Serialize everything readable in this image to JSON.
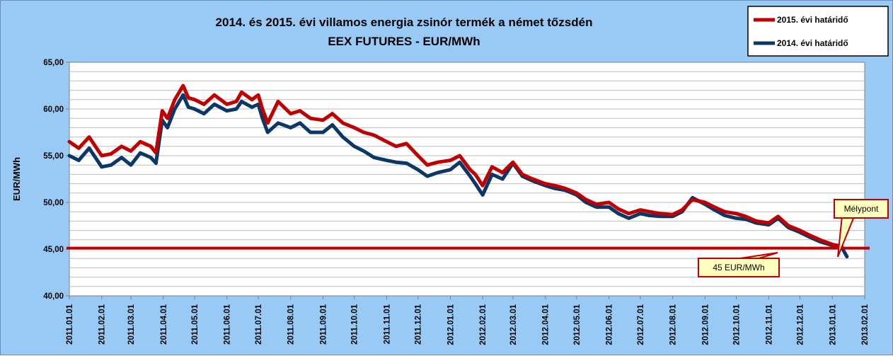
{
  "chart_data": {
    "type": "line",
    "title": "2014. és 2015. évi villamos energia zsinór termék a német tőzsdén",
    "subtitle": "EEX FUTURES - EUR/MWh",
    "ylabel": "EUR/MWh",
    "xlabel": "",
    "ylim": [
      40,
      65
    ],
    "yticks": [
      "40,00",
      "45,00",
      "50,00",
      "55,00",
      "60,00",
      "65,00"
    ],
    "xticks": [
      "2011.01.01",
      "2011.02.01",
      "2011.03.01",
      "2011.04.01",
      "2011.05.01",
      "2011.06.01",
      "2011.07.01",
      "2011.08.01",
      "2011.09.01",
      "2011.10.01",
      "2011.11.01",
      "2011.12.01",
      "2012.01.01",
      "2012.02.01",
      "2012.03.01",
      "2012.04.01",
      "2012.05.01",
      "2012.06.01",
      "2012.07.01",
      "2012.08.01",
      "2012.09.01",
      "2012.10.01",
      "2012.11.01",
      "2012.12.01",
      "2013.01.01",
      "2013.02.01"
    ],
    "grid": true,
    "legend_position": "top-right",
    "series": [
      {
        "name": "2015. évi határidő",
        "color": "#c00000",
        "points": [
          [
            "2011.01.01",
            56.5
          ],
          [
            "2011.01.10",
            55.8
          ],
          [
            "2011.01.20",
            57.0
          ],
          [
            "2011.02.01",
            55.0
          ],
          [
            "2011.02.10",
            55.2
          ],
          [
            "2011.02.20",
            56.0
          ],
          [
            "2011.03.01",
            55.5
          ],
          [
            "2011.03.10",
            56.5
          ],
          [
            "2011.03.20",
            56.0
          ],
          [
            "2011.03.25",
            55.3
          ],
          [
            "2011.03.31",
            59.8
          ],
          [
            "2011.04.05",
            59.0
          ],
          [
            "2011.04.12",
            61.0
          ],
          [
            "2011.04.20",
            62.5
          ],
          [
            "2011.04.25",
            61.2
          ],
          [
            "2011.05.01",
            61.0
          ],
          [
            "2011.05.10",
            60.5
          ],
          [
            "2011.05.20",
            61.5
          ],
          [
            "2011.06.01",
            60.5
          ],
          [
            "2011.06.10",
            60.8
          ],
          [
            "2011.06.15",
            61.8
          ],
          [
            "2011.06.25",
            61.0
          ],
          [
            "2011.07.01",
            61.5
          ],
          [
            "2011.07.05",
            60.0
          ],
          [
            "2011.07.10",
            58.5
          ],
          [
            "2011.07.20",
            60.8
          ],
          [
            "2011.08.01",
            59.5
          ],
          [
            "2011.08.10",
            59.8
          ],
          [
            "2011.08.20",
            59.0
          ],
          [
            "2011.09.01",
            58.8
          ],
          [
            "2011.09.10",
            59.5
          ],
          [
            "2011.09.20",
            58.5
          ],
          [
            "2011.10.01",
            58.0
          ],
          [
            "2011.10.10",
            57.5
          ],
          [
            "2011.10.20",
            57.2
          ],
          [
            "2011.11.01",
            56.5
          ],
          [
            "2011.11.10",
            56.0
          ],
          [
            "2011.11.20",
            56.3
          ],
          [
            "2011.12.01",
            55.0
          ],
          [
            "2011.12.10",
            54.0
          ],
          [
            "2011.12.20",
            54.3
          ],
          [
            "2012.01.01",
            54.5
          ],
          [
            "2012.01.10",
            55.0
          ],
          [
            "2012.01.20",
            53.5
          ],
          [
            "2012.01.25",
            53.0
          ],
          [
            "2012.02.01",
            51.8
          ],
          [
            "2012.02.10",
            53.8
          ],
          [
            "2012.02.20",
            53.2
          ],
          [
            "2012.03.01",
            54.3
          ],
          [
            "2012.03.10",
            53.0
          ],
          [
            "2012.03.20",
            52.5
          ],
          [
            "2012.04.01",
            52.0
          ],
          [
            "2012.04.10",
            51.8
          ],
          [
            "2012.04.20",
            51.5
          ],
          [
            "2012.05.01",
            51.0
          ],
          [
            "2012.05.10",
            50.3
          ],
          [
            "2012.05.20",
            49.8
          ],
          [
            "2012.06.01",
            50.0
          ],
          [
            "2012.06.10",
            49.3
          ],
          [
            "2012.06.20",
            48.8
          ],
          [
            "2012.07.01",
            49.2
          ],
          [
            "2012.07.10",
            49.0
          ],
          [
            "2012.07.20",
            48.8
          ],
          [
            "2012.08.01",
            48.7
          ],
          [
            "2012.08.10",
            49.2
          ],
          [
            "2012.08.20",
            50.3
          ],
          [
            "2012.09.01",
            50.0
          ],
          [
            "2012.09.10",
            49.5
          ],
          [
            "2012.09.20",
            49.0
          ],
          [
            "2012.10.01",
            48.8
          ],
          [
            "2012.10.10",
            48.5
          ],
          [
            "2012.10.20",
            48.0
          ],
          [
            "2012.11.01",
            47.8
          ],
          [
            "2012.11.10",
            48.5
          ],
          [
            "2012.11.20",
            47.5
          ],
          [
            "2012.12.01",
            47.0
          ],
          [
            "2012.12.10",
            46.5
          ],
          [
            "2012.12.20",
            46.0
          ],
          [
            "2013.01.01",
            45.5
          ],
          [
            "2013.01.10",
            45.3
          ]
        ]
      },
      {
        "name": "2014. évi határidő",
        "color": "#0a3768",
        "points": [
          [
            "2011.01.01",
            55.0
          ],
          [
            "2011.01.10",
            54.5
          ],
          [
            "2011.01.20",
            55.8
          ],
          [
            "2011.02.01",
            53.8
          ],
          [
            "2011.02.10",
            54.0
          ],
          [
            "2011.02.20",
            54.8
          ],
          [
            "2011.03.01",
            54.0
          ],
          [
            "2011.03.10",
            55.3
          ],
          [
            "2011.03.20",
            54.8
          ],
          [
            "2011.03.25",
            54.2
          ],
          [
            "2011.03.31",
            58.8
          ],
          [
            "2011.04.05",
            58.0
          ],
          [
            "2011.04.12",
            60.0
          ],
          [
            "2011.04.20",
            61.5
          ],
          [
            "2011.04.25",
            60.2
          ],
          [
            "2011.05.01",
            60.0
          ],
          [
            "2011.05.10",
            59.5
          ],
          [
            "2011.05.20",
            60.5
          ],
          [
            "2011.06.01",
            59.8
          ],
          [
            "2011.06.10",
            60.0
          ],
          [
            "2011.06.15",
            60.8
          ],
          [
            "2011.06.25",
            60.2
          ],
          [
            "2011.07.01",
            60.5
          ],
          [
            "2011.07.05",
            59.0
          ],
          [
            "2011.07.10",
            57.5
          ],
          [
            "2011.07.20",
            58.5
          ],
          [
            "2011.08.01",
            58.0
          ],
          [
            "2011.08.10",
            58.5
          ],
          [
            "2011.08.20",
            57.5
          ],
          [
            "2011.09.01",
            57.5
          ],
          [
            "2011.09.10",
            58.3
          ],
          [
            "2011.09.20",
            57.0
          ],
          [
            "2011.10.01",
            56.0
          ],
          [
            "2011.10.10",
            55.5
          ],
          [
            "2011.10.20",
            54.8
          ],
          [
            "2011.11.01",
            54.5
          ],
          [
            "2011.11.10",
            54.3
          ],
          [
            "2011.11.20",
            54.2
          ],
          [
            "2011.12.01",
            53.5
          ],
          [
            "2011.12.10",
            52.8
          ],
          [
            "2011.12.20",
            53.2
          ],
          [
            "2012.01.01",
            53.5
          ],
          [
            "2012.01.10",
            54.3
          ],
          [
            "2012.01.20",
            52.8
          ],
          [
            "2012.01.25",
            52.0
          ],
          [
            "2012.02.01",
            50.8
          ],
          [
            "2012.02.10",
            53.0
          ],
          [
            "2012.02.20",
            52.5
          ],
          [
            "2012.03.01",
            54.2
          ],
          [
            "2012.03.10",
            52.8
          ],
          [
            "2012.03.20",
            52.3
          ],
          [
            "2012.04.01",
            51.8
          ],
          [
            "2012.04.10",
            51.5
          ],
          [
            "2012.04.20",
            51.3
          ],
          [
            "2012.05.01",
            50.8
          ],
          [
            "2012.05.10",
            50.0
          ],
          [
            "2012.05.20",
            49.5
          ],
          [
            "2012.06.01",
            49.5
          ],
          [
            "2012.06.10",
            48.8
          ],
          [
            "2012.06.20",
            48.3
          ],
          [
            "2012.07.01",
            48.8
          ],
          [
            "2012.07.10",
            48.6
          ],
          [
            "2012.07.20",
            48.5
          ],
          [
            "2012.08.01",
            48.5
          ],
          [
            "2012.08.10",
            49.0
          ],
          [
            "2012.08.20",
            50.5
          ],
          [
            "2012.09.01",
            49.8
          ],
          [
            "2012.09.10",
            49.2
          ],
          [
            "2012.09.20",
            48.6
          ],
          [
            "2012.10.01",
            48.3
          ],
          [
            "2012.10.10",
            48.2
          ],
          [
            "2012.10.20",
            47.8
          ],
          [
            "2012.11.01",
            47.6
          ],
          [
            "2012.11.10",
            48.3
          ],
          [
            "2012.11.20",
            47.3
          ],
          [
            "2012.12.01",
            46.8
          ],
          [
            "2012.12.10",
            46.3
          ],
          [
            "2012.12.20",
            45.8
          ],
          [
            "2013.01.01",
            45.4
          ],
          [
            "2013.01.10",
            45.2
          ],
          [
            "2013.01.15",
            44.2
          ]
        ]
      }
    ],
    "reference_line": {
      "label": "45 EUR/MWh",
      "value": 45.1,
      "color": "#c00000"
    },
    "annotation": {
      "label": "Mélypont",
      "date": "2013.01.15",
      "value": 44.2
    }
  }
}
